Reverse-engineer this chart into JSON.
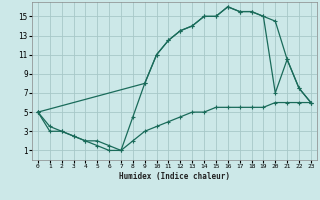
{
  "title": "",
  "xlabel": "Humidex (Indice chaleur)",
  "bg_color": "#cce8e8",
  "grid_color": "#a8c8c8",
  "line_color": "#1a6b5a",
  "xlim": [
    -0.5,
    23.5
  ],
  "ylim": [
    0,
    16.5
  ],
  "xticks": [
    0,
    1,
    2,
    3,
    4,
    5,
    6,
    7,
    8,
    9,
    10,
    11,
    12,
    13,
    14,
    15,
    16,
    17,
    18,
    19,
    20,
    21,
    22,
    23
  ],
  "yticks": [
    1,
    3,
    5,
    7,
    9,
    11,
    13,
    15
  ],
  "line1_x": [
    0,
    1,
    2,
    3,
    4,
    5,
    6,
    7,
    8,
    9,
    10,
    11,
    12,
    13,
    14,
    15,
    16,
    17,
    18,
    19,
    20,
    21,
    22,
    23
  ],
  "line1_y": [
    5,
    3,
    3,
    2.5,
    2,
    1.5,
    1,
    1,
    4.5,
    8,
    11,
    12.5,
    13.5,
    14,
    15,
    15,
    16,
    15.5,
    15.5,
    15,
    7,
    10.5,
    7.5,
    6
  ],
  "line2_x": [
    0,
    1,
    2,
    3,
    4,
    5,
    6,
    7,
    8,
    9,
    10,
    11,
    12,
    13,
    14,
    15,
    16,
    17,
    18,
    19,
    20,
    21,
    22,
    23
  ],
  "line2_y": [
    5,
    3.5,
    3,
    2.5,
    2,
    2,
    1.5,
    1,
    2,
    3,
    3.5,
    4,
    4.5,
    5,
    5,
    5.5,
    5.5,
    5.5,
    5.5,
    5.5,
    6,
    6,
    6,
    6
  ],
  "line3_x": [
    0,
    9,
    10,
    11,
    12,
    13,
    14,
    15,
    16,
    17,
    18,
    19,
    20,
    21,
    22,
    23
  ],
  "line3_y": [
    5,
    8,
    11,
    12.5,
    13.5,
    14,
    15,
    15,
    16,
    15.5,
    15.5,
    15,
    14.5,
    10.5,
    7.5,
    6
  ]
}
